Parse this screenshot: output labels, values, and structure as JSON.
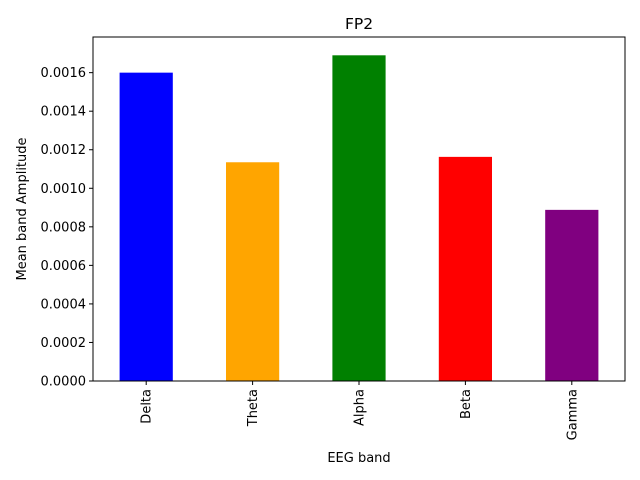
{
  "chart_data": {
    "type": "bar",
    "title": "FP2",
    "xlabel": "EEG band",
    "ylabel": "Mean band Amplitude",
    "categories": [
      "Delta",
      "Theta",
      "Alpha",
      "Beta",
      "Gamma"
    ],
    "values": [
      0.0016,
      0.001135,
      0.00169,
      0.001163,
      0.000888
    ],
    "colors": [
      "#0000ff",
      "#ffa500",
      "#008000",
      "#ff0000",
      "#800080"
    ],
    "ylim": [
      0,
      0.001785
    ],
    "yticks": [
      "0.0000",
      "0.0002",
      "0.0004",
      "0.0006",
      "0.0008",
      "0.0010",
      "0.0012",
      "0.0014",
      "0.0016"
    ],
    "ytick_values": [
      0,
      0.0002,
      0.0004,
      0.0006,
      0.0008,
      0.001,
      0.0012,
      0.0014,
      0.0016
    ],
    "grid": false,
    "legend": "none"
  }
}
